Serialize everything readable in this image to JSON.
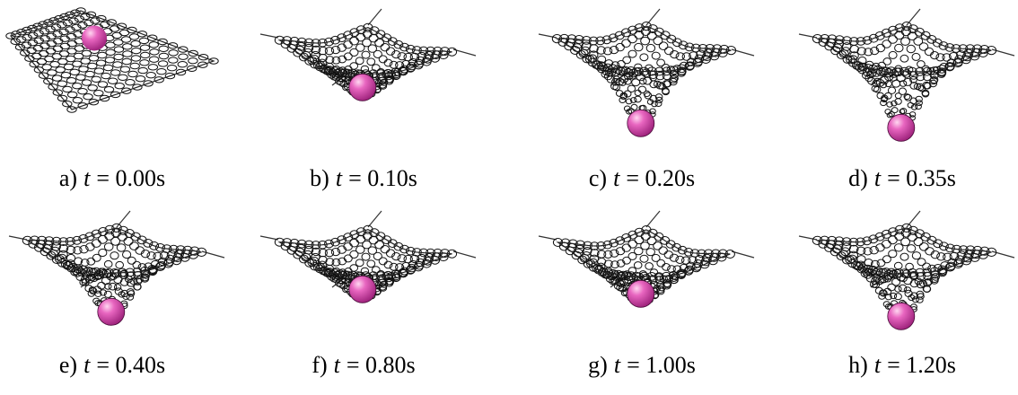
{
  "panels": [
    {
      "prefix": "a)",
      "var": "t",
      "rest": "= 0.00s"
    },
    {
      "prefix": "b)",
      "var": "t",
      "rest": "= 0.10s"
    },
    {
      "prefix": "c)",
      "var": "t",
      "rest": "= 0.20s"
    },
    {
      "prefix": "d)",
      "var": "t",
      "rest": "= 0.35s"
    },
    {
      "prefix": "e)",
      "var": "t",
      "rest": "= 0.40s"
    },
    {
      "prefix": "f)",
      "var": "t",
      "rest": "= 0.80s"
    },
    {
      "prefix": "g)",
      "var": "t",
      "rest": "= 1.00s"
    },
    {
      "prefix": "h)",
      "var": "t",
      "rest": "= 1.20s"
    }
  ]
}
